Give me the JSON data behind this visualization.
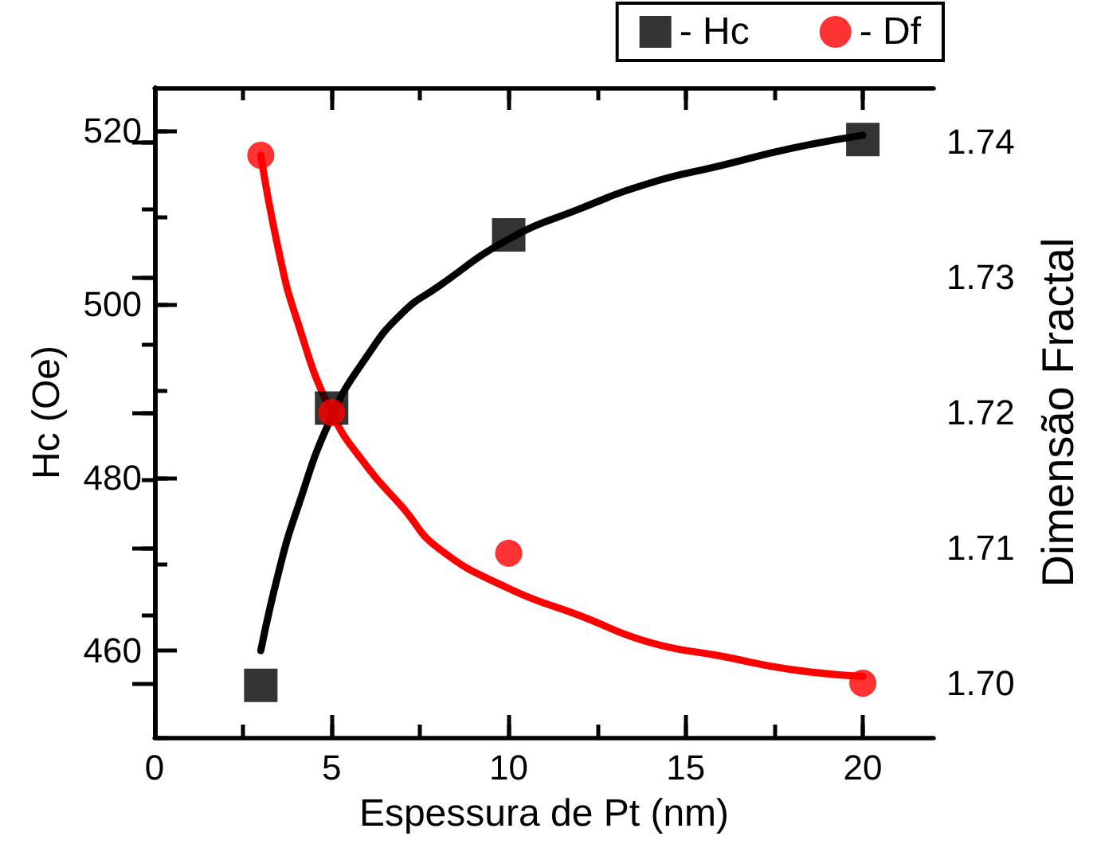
{
  "chart_data": {
    "type": "scatter",
    "xlabel": "Espessura de Pt (nm)",
    "ylabel": "Hc (Oe)",
    "y2label": "Dimensão Fractal",
    "xlim": [
      0,
      22
    ],
    "xticks": [
      0,
      5,
      10,
      15,
      20
    ],
    "ylim": [
      450,
      525
    ],
    "yticks": [
      460,
      480,
      500,
      520
    ],
    "y2lim": [
      1.696,
      1.744
    ],
    "y2ticks": [
      {
        "value": 1.7,
        "label": "1.70"
      },
      {
        "value": 1.71,
        "label": "1.71"
      },
      {
        "value": 1.72,
        "label": "1.72"
      },
      {
        "value": 1.73,
        "label": "1.73"
      },
      {
        "value": 1.74,
        "label": "1.74"
      }
    ],
    "grid": false,
    "legend": "top right",
    "series": [
      {
        "type": "line",
        "color": "#000000",
        "marker": "none",
        "x": [
          3,
          3.5,
          4,
          5,
          6,
          7,
          8,
          10,
          12,
          14,
          16,
          18,
          20
        ],
        "values": [
          460,
          469,
          476,
          487,
          494,
          499,
          502,
          507.5,
          511,
          514,
          516,
          518,
          519.5
        ]
      },
      {
        "type": "line",
        "color": "#ff0000",
        "marker": "none",
        "axis": "y2",
        "x": [
          3,
          3.5,
          4,
          5,
          6,
          7,
          8,
          10,
          12,
          14,
          16,
          18,
          20
        ],
        "values": [
          1.739,
          1.732,
          1.727,
          1.72,
          1.716,
          1.713,
          1.71,
          1.707,
          1.705,
          1.703,
          1.702,
          1.701,
          1.7005
        ]
      },
      {
        "name": "- Hc",
        "color": "#000000",
        "marker": "square",
        "x": [
          3,
          5,
          10,
          20
        ],
        "values": [
          456,
          488,
          508,
          519
        ]
      },
      {
        "name": "- Df",
        "color": "#ff0000",
        "marker": "circle",
        "axis": "y2",
        "x": [
          3,
          5,
          10,
          20
        ],
        "values": [
          1.739,
          1.72,
          1.7096,
          1.7
        ]
      }
    ]
  }
}
